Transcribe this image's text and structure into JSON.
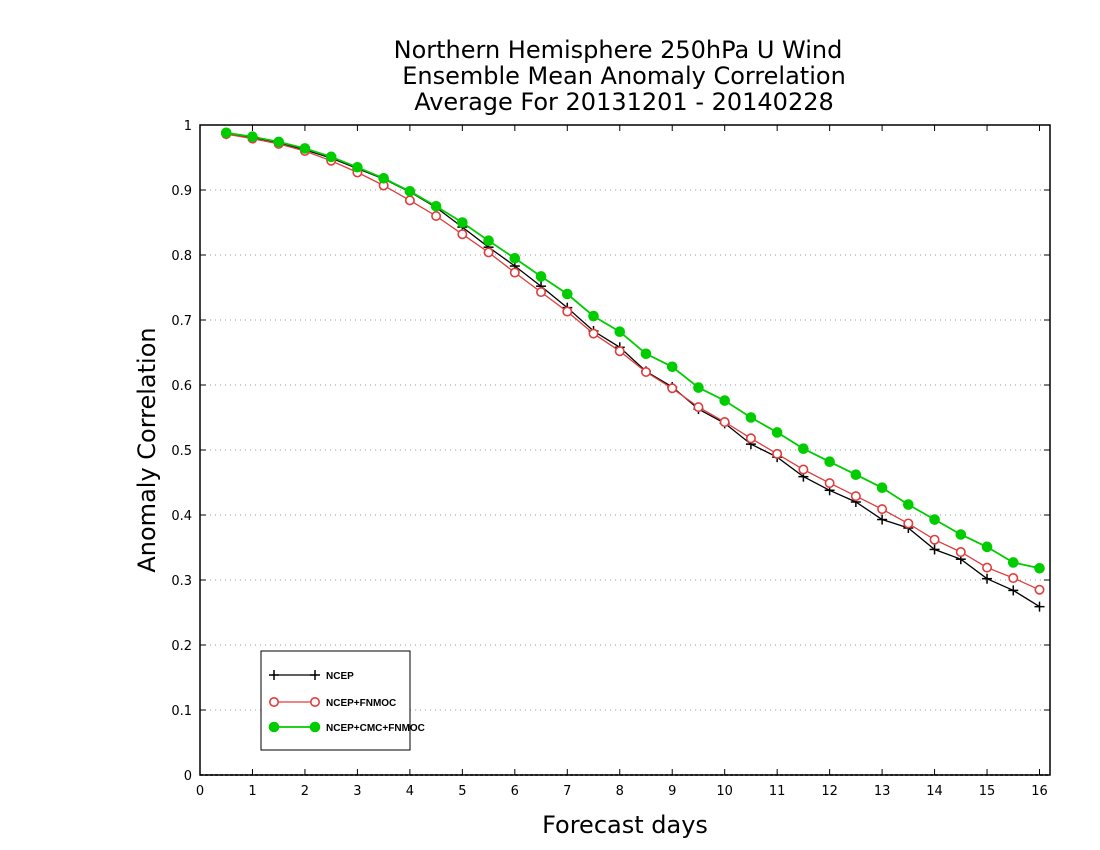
{
  "chart_data": {
    "type": "line",
    "title_lines": [
      "Northern Hemisphere 250hPa U Wind",
      "Ensemble Mean Anomaly Correlation",
      "Average For 20131201 - 20140228"
    ],
    "xlabel": "Forecast days",
    "ylabel": "Anomaly Correlation",
    "xlim": [
      0,
      16.2
    ],
    "ylim": [
      0,
      1
    ],
    "x_ticks": [
      "0",
      "1",
      "2",
      "3",
      "4",
      "5",
      "6",
      "7",
      "8",
      "9",
      "10",
      "11",
      "12",
      "13",
      "14",
      "15",
      "16"
    ],
    "y_ticks": [
      "0",
      "0.1",
      "0.2",
      "0.3",
      "0.4",
      "0.5",
      "0.6",
      "0.7",
      "0.8",
      "0.9",
      "1"
    ],
    "grid": "horizontal dotted",
    "legend_position": "bottom-left",
    "x": [
      0.5,
      1,
      1.5,
      2,
      2.5,
      3,
      3.5,
      4,
      4.5,
      5,
      5.5,
      6,
      6.5,
      7,
      7.5,
      8,
      8.5,
      9,
      9.5,
      10,
      10.5,
      11,
      11.5,
      12,
      12.5,
      13,
      13.5,
      14,
      14.5,
      15,
      15.5,
      16
    ],
    "series": [
      {
        "name": "NCEP",
        "color": "#000000",
        "marker": "plus",
        "values": [
          0.986,
          0.981,
          0.973,
          0.962,
          0.949,
          0.933,
          0.917,
          0.897,
          0.873,
          0.843,
          0.812,
          0.783,
          0.752,
          0.719,
          0.683,
          0.658,
          0.621,
          0.597,
          0.563,
          0.541,
          0.509,
          0.489,
          0.459,
          0.438,
          0.42,
          0.393,
          0.38,
          0.347,
          0.332,
          0.302,
          0.284,
          0.259
        ]
      },
      {
        "name": "NCEP+FNMOC",
        "color": "#e03c3c",
        "marker": "open-circle",
        "values": [
          0.986,
          0.979,
          0.971,
          0.96,
          0.945,
          0.927,
          0.907,
          0.884,
          0.86,
          0.832,
          0.804,
          0.773,
          0.743,
          0.713,
          0.679,
          0.652,
          0.62,
          0.595,
          0.566,
          0.543,
          0.518,
          0.494,
          0.47,
          0.449,
          0.429,
          0.409,
          0.387,
          0.362,
          0.343,
          0.319,
          0.303,
          0.285
        ]
      },
      {
        "name": "NCEP+CMC+FNMOC",
        "color": "#00cc00",
        "marker": "filled-circle",
        "values": [
          0.988,
          0.982,
          0.974,
          0.964,
          0.951,
          0.935,
          0.918,
          0.898,
          0.875,
          0.85,
          0.822,
          0.795,
          0.767,
          0.74,
          0.706,
          0.682,
          0.648,
          0.628,
          0.596,
          0.576,
          0.55,
          0.527,
          0.502,
          0.482,
          0.462,
          0.442,
          0.416,
          0.393,
          0.37,
          0.351,
          0.327,
          0.318
        ]
      }
    ]
  }
}
